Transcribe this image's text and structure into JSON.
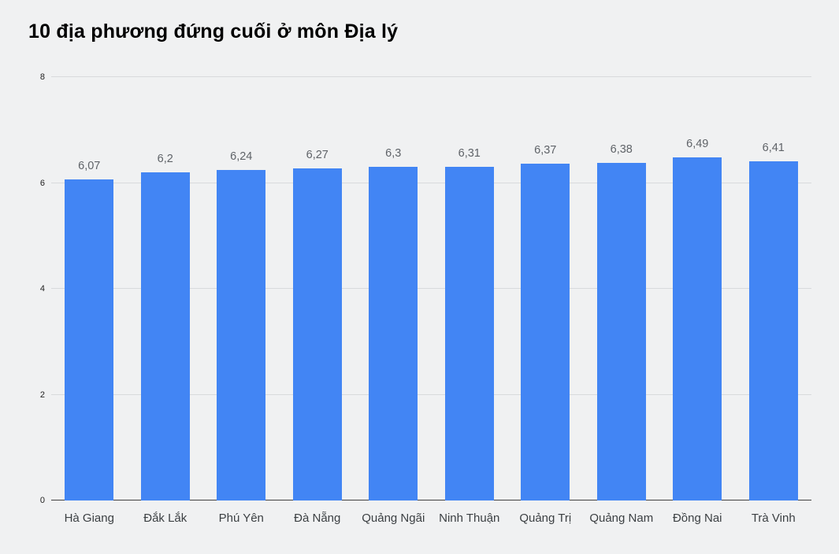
{
  "title": "10 địa phương đứng cuối ở môn Địa lý",
  "chart_data": {
    "type": "bar",
    "title": "10 địa phương đứng cuối ở môn Địa lý",
    "categories": [
      "Hà Giang",
      "Đắk Lắk",
      "Phú Yên",
      "Đà Nẵng",
      "Quảng Ngãi",
      "Ninh Thuận",
      "Quảng Trị",
      "Quảng Nam",
      "Đồng Nai",
      "Trà Vinh"
    ],
    "values": [
      6.07,
      6.2,
      6.24,
      6.27,
      6.3,
      6.31,
      6.37,
      6.38,
      6.49,
      6.41
    ],
    "value_labels": [
      "6,07",
      "6,2",
      "6,24",
      "6,27",
      "6,3",
      "6,31",
      "6,37",
      "6,38",
      "6,49",
      "6,41"
    ],
    "xlabel": "",
    "ylabel": "",
    "ylim": [
      0,
      8
    ],
    "yticks": [
      0,
      2,
      4,
      6,
      8
    ],
    "grid": true,
    "legend": "none",
    "colors": {
      "bar": "#4285f4",
      "background": "#f0f1f2",
      "gridline": "#d8dadc",
      "axis_baseline": "#424242",
      "value_label": "#5f6368",
      "category_label": "#3c4043",
      "tick_label": "#222222",
      "title": "#000000"
    }
  }
}
